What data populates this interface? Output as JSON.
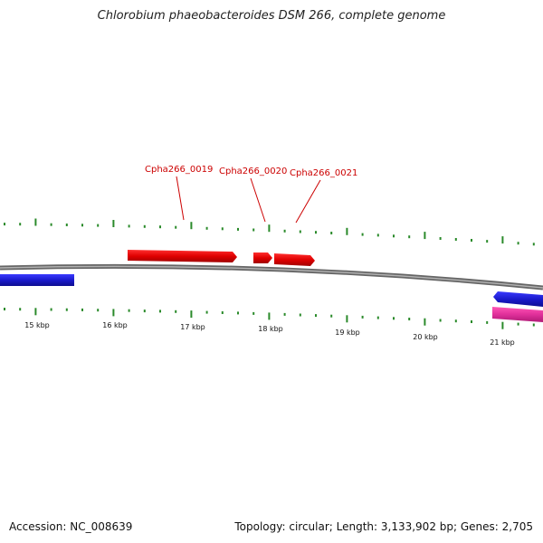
{
  "title": "Chlorobium phaeobacteroides DSM 266, complete genome",
  "footer": {
    "accession": "Accession: NC_008639",
    "summary": "Topology: circular; Length: 3,133,902 bp; Genes: 2,705"
  },
  "genes_highlighted": [
    {
      "label": "Cpha266_0019",
      "color": "#e00000",
      "strand": "forward"
    },
    {
      "label": "Cpha266_0020",
      "color": "#e00000",
      "strand": "forward"
    },
    {
      "label": "Cpha266_0021",
      "color": "#e00000",
      "strand": "forward"
    }
  ],
  "other_features": [
    {
      "color": "#1a1acc",
      "strand": "reverse"
    },
    {
      "color": "#1a1acc",
      "strand": "reverse"
    },
    {
      "color": "#e0309a",
      "strand": "reverse"
    }
  ],
  "scale_labels": [
    "15 kbp",
    "16 kbp",
    "17 kbp",
    "18 kbp",
    "19 kbp",
    "20 kbp",
    "21 kbp"
  ],
  "colors": {
    "backbone": "#7a7a7a",
    "ticks": "#2a8a2a",
    "gene_red": "#e00000",
    "gene_blue": "#1a1acc",
    "gene_pink": "#e0309a"
  }
}
